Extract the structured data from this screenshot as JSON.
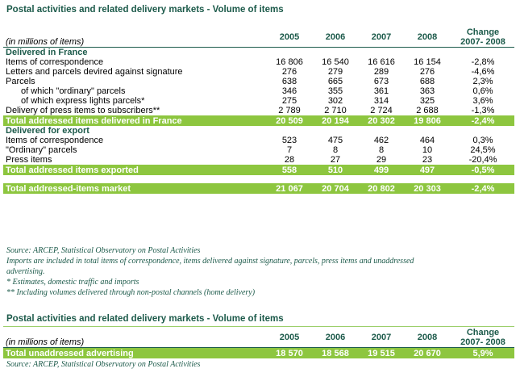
{
  "table1": {
    "title": "Postal activities and related delivery markets - Volume of items",
    "unit_note": "(in millions of items)",
    "years": [
      "2005",
      "2006",
      "2007",
      "2008"
    ],
    "change_label_1": "Change",
    "change_label_2": "2007- 2008",
    "rows": [
      {
        "type": "section",
        "label": "Delivered in France",
        "values": [
          "",
          "",
          "",
          "",
          ""
        ]
      },
      {
        "type": "row",
        "label": "Items of correspondence",
        "values": [
          "16 806",
          "16 540",
          "16 616",
          "16 154",
          "-2,8%"
        ]
      },
      {
        "type": "row",
        "label": "Letters and parcels devired against signature",
        "values": [
          "276",
          "279",
          "289",
          "276",
          "-4,6%"
        ]
      },
      {
        "type": "row",
        "label": "Parcels",
        "values": [
          "638",
          "665",
          "673",
          "688",
          "2,3%"
        ]
      },
      {
        "type": "indent",
        "label": "of which \"ordinary\" parcels",
        "values": [
          "346",
          "355",
          "361",
          "363",
          "0,6%"
        ]
      },
      {
        "type": "indent",
        "label": "of which express lights parcels*",
        "values": [
          "275",
          "302",
          "314",
          "325",
          "3,6%"
        ]
      },
      {
        "type": "row",
        "label": "Delivery of press items to subscribers**",
        "values": [
          "2 789",
          "2 710",
          "2 724",
          "2 688",
          "-1,3%"
        ]
      },
      {
        "type": "total",
        "label": "Total addressed items delivered in France",
        "values": [
          "20 509",
          "20 194",
          "20 302",
          "19 806",
          "-2,4%"
        ]
      },
      {
        "type": "section",
        "label": "Delivered for export",
        "values": [
          "",
          "",
          "",
          "",
          ""
        ]
      },
      {
        "type": "row",
        "label": "Items of correspondence",
        "values": [
          "523",
          "475",
          "462",
          "464",
          "0,3%"
        ]
      },
      {
        "type": "row",
        "label": "\"Ordinary\" parcels",
        "values": [
          "7",
          "8",
          "8",
          "10",
          "24,5%"
        ]
      },
      {
        "type": "row",
        "label": "Press items",
        "values": [
          "28",
          "27",
          "29",
          "23",
          "-20,4%"
        ]
      },
      {
        "type": "total",
        "label": "Total addressed items exported",
        "values": [
          "558",
          "510",
          "499",
          "497",
          "-0,5%"
        ]
      },
      {
        "type": "spacer",
        "label": "",
        "values": [
          "",
          "",
          "",
          "",
          ""
        ]
      },
      {
        "type": "total",
        "label": "Total addressed-items market",
        "values": [
          "21 067",
          "20 704",
          "20 802",
          "20 303",
          "-2,4%"
        ]
      }
    ],
    "notes": [
      "Source: ARCEP, Statistical Observatory on Postal Activities",
      "Imports are included in total items of correspondence, items delivered against signature, parcels, press items and unaddressed",
      "advertising.",
      "* Estimates, domestic traffic and imports",
      "** Including volumes delivered through non-postal channels (home delivery)"
    ]
  },
  "table2": {
    "title": "Postal activities and related delivery markets - Volume of items",
    "unit_note": "(in millions of items)",
    "years": [
      "2005",
      "2006",
      "2007",
      "2008"
    ],
    "change_label_1": "Change",
    "change_label_2": "2007- 2008",
    "total_label": "Total unaddressed advertising",
    "total_values": [
      "18 570",
      "18 568",
      "19 515",
      "20 670",
      "5,9%"
    ],
    "note": "Source: ARCEP, Statistical Observatory on Postal Activities"
  },
  "colors": {
    "accent": "#1c5a4a",
    "total_bar": "#8dc63f"
  }
}
